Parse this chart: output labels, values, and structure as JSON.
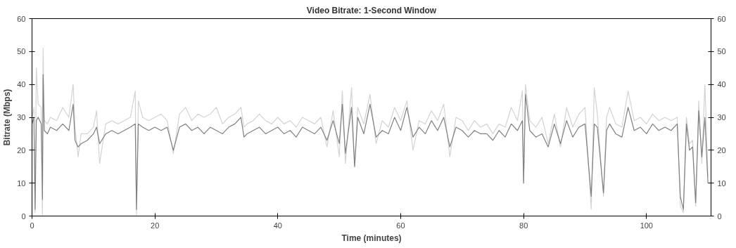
{
  "chart_data": {
    "type": "line",
    "title": "Video Bitrate: 1-Second Window",
    "xlabel": "Time (minutes)",
    "ylabel": "Bitrate (Mbps)",
    "x": [
      0,
      0.3,
      0.5,
      0.7,
      1,
      1.5,
      1.7,
      1.8,
      2,
      2.5,
      3,
      4,
      5,
      6,
      6.7,
      7,
      7.5,
      8,
      9,
      10,
      10.5,
      11,
      12,
      13,
      14,
      15,
      16,
      16.8,
      17,
      17.3,
      18,
      19,
      20,
      21,
      22,
      23,
      24,
      25,
      26,
      27,
      28,
      29,
      30,
      31,
      32,
      33,
      34,
      34.5,
      35,
      36,
      37,
      38,
      39,
      40,
      41,
      42,
      43,
      44,
      45,
      46,
      47,
      48,
      49,
      50,
      50.5,
      51,
      52,
      52.5,
      53,
      54,
      55,
      56,
      57,
      58,
      59,
      60,
      61,
      62,
      63,
      64,
      65,
      66,
      67,
      68,
      69,
      70,
      71,
      72,
      73,
      74,
      75,
      76,
      77,
      78,
      79,
      79.8,
      80,
      80.3,
      81,
      82,
      83,
      84,
      85,
      86,
      87,
      88,
      89,
      90,
      91,
      91.5,
      92,
      93,
      93.5,
      94,
      95,
      96,
      97,
      98,
      99,
      100,
      101,
      102,
      103,
      104,
      105,
      105.5,
      106,
      106.5,
      107,
      107.5,
      108,
      108.5,
      109,
      109.5,
      110
    ],
    "series": [
      {
        "color": "#d3d3d3",
        "values": [
          30,
          33,
          1,
          45,
          34,
          33,
          0,
          51,
          29,
          28,
          30,
          29,
          33,
          30,
          40,
          27,
          18,
          25,
          25,
          27,
          32,
          16,
          28,
          29,
          28,
          29,
          30,
          38,
          0,
          35,
          30,
          29,
          30,
          31,
          29,
          19,
          31,
          33,
          29,
          31,
          30,
          31,
          33,
          28,
          30,
          31,
          33,
          27,
          28,
          29,
          31,
          29,
          28,
          30,
          28,
          29,
          27,
          30,
          29,
          28,
          30,
          21,
          32,
          18,
          38,
          16,
          39,
          15,
          33,
          28,
          37,
          22,
          29,
          27,
          33,
          29,
          35,
          20,
          29,
          28,
          32,
          29,
          34,
          18,
          30,
          29,
          26,
          29,
          27,
          28,
          25,
          28,
          27,
          33,
          29,
          38,
          10,
          40,
          29,
          27,
          30,
          22,
          31,
          21,
          33,
          27,
          31,
          33,
          2,
          39,
          31,
          6,
          30,
          33,
          28,
          27,
          38,
          29,
          30,
          28,
          31,
          29,
          30,
          29,
          30,
          3,
          1,
          30,
          22,
          23,
          3,
          35,
          16,
          40,
          12
        ]
      },
      {
        "color": "#808080",
        "values": [
          28,
          30,
          2,
          29,
          30,
          28,
          5,
          43,
          26,
          25,
          27,
          26,
          28,
          26,
          34,
          23,
          21,
          22,
          23,
          25,
          27,
          22,
          25,
          26,
          25,
          26,
          27,
          28,
          2,
          28,
          27,
          26,
          27,
          26,
          27,
          20,
          27,
          28,
          26,
          27,
          25,
          27,
          26,
          25,
          27,
          28,
          30,
          24,
          25,
          26,
          27,
          25,
          26,
          27,
          25,
          26,
          24,
          27,
          26,
          25,
          27,
          23,
          29,
          22,
          34,
          19,
          33,
          15,
          30,
          25,
          34,
          24,
          26,
          25,
          30,
          26,
          33,
          24,
          27,
          25,
          29,
          26,
          30,
          21,
          27,
          26,
          24,
          26,
          25,
          25,
          23,
          26,
          24,
          28,
          26,
          29,
          10,
          37,
          26,
          24,
          25,
          21,
          28,
          22,
          29,
          24,
          27,
          28,
          6,
          28,
          27,
          7,
          26,
          28,
          25,
          24,
          33,
          26,
          27,
          25,
          28,
          26,
          27,
          26,
          28,
          6,
          2,
          28,
          20,
          21,
          4,
          32,
          18,
          30,
          10
        ]
      }
    ],
    "xlim": [
      0,
      110.5
    ],
    "xticks": [
      0,
      20,
      40,
      60,
      80,
      100
    ],
    "ylim": [
      0,
      60
    ],
    "yticks": [
      0,
      10,
      20,
      30,
      40,
      50,
      60
    ],
    "y2lim": [
      0,
      60
    ],
    "y2ticks": [
      0,
      10,
      20,
      30,
      40,
      50,
      60
    ],
    "grid": false,
    "marker": "none",
    "line_style": "solid"
  }
}
